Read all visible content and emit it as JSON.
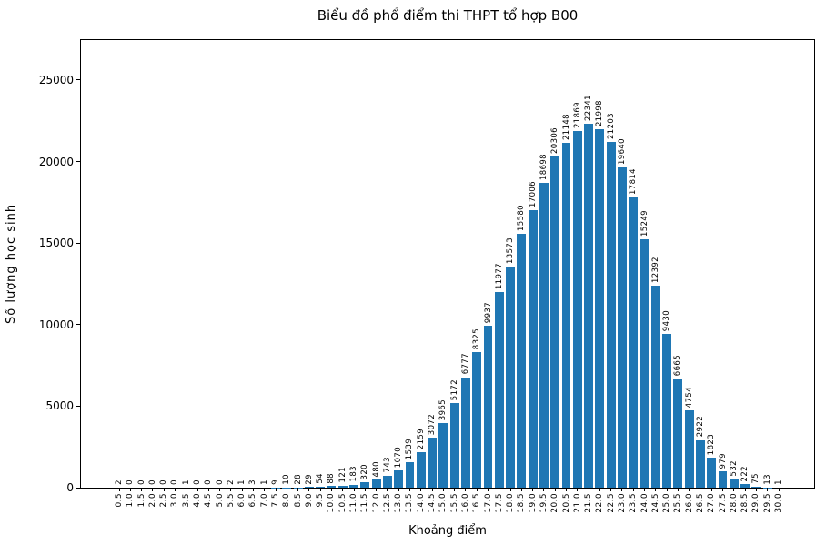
{
  "chart_data": {
    "type": "bar",
    "title": "Biểu đồ phổ điểm thi THPT tổ hợp B00",
    "xlabel": "Khoảng điểm",
    "ylabel": "Số lượng học sinh",
    "categories": [
      "0.5",
      "1.0",
      "1.5",
      "2.0",
      "2.5",
      "3.0",
      "3.5",
      "4.0",
      "4.5",
      "5.0",
      "5.5",
      "6.0",
      "6.5",
      "7.0",
      "7.5",
      "8.0",
      "8.5",
      "9.0",
      "9.5",
      "10.0",
      "10.5",
      "11.0",
      "11.5",
      "12.0",
      "12.5",
      "13.0",
      "13.5",
      "14.0",
      "14.5",
      "15.0",
      "15.5",
      "16.0",
      "16.5",
      "17.0",
      "17.5",
      "18.0",
      "18.5",
      "19.0",
      "19.5",
      "20.0",
      "20.5",
      "21.0",
      "21.5",
      "22.0",
      "22.5",
      "23.0",
      "23.5",
      "24.0",
      "24.5",
      "25.0",
      "25.5",
      "26.0",
      "26.5",
      "27.0",
      "27.5",
      "28.0",
      "28.5",
      "29.0",
      "29.5",
      "30.0"
    ],
    "values": [
      2,
      0,
      0,
      0,
      0,
      0,
      1,
      0,
      0,
      0,
      2,
      1,
      3,
      1,
      9,
      10,
      28,
      29,
      54,
      88,
      121,
      183,
      320,
      480,
      743,
      1070,
      1539,
      2159,
      3072,
      3965,
      5172,
      6777,
      8325,
      9937,
      11977,
      13573,
      15580,
      17006,
      18698,
      20306,
      21148,
      21869,
      22341,
      21998,
      21203,
      19640,
      17814,
      15249,
      12392,
      9430,
      6665,
      4754,
      2922,
      1823,
      979,
      532,
      222,
      75,
      13,
      1
    ],
    "yticks": [
      0,
      5000,
      10000,
      15000,
      20000,
      25000
    ],
    "ytick_labels": [
      "0",
      "5000",
      "10000",
      "15000",
      "20000",
      "25000"
    ],
    "ylim": [
      0,
      27450
    ],
    "bar_color": "#1f77b4",
    "text_color": "#000000",
    "grid": false,
    "x_tick_rotation": 90,
    "value_label_rotation": 90,
    "legend_position": "none"
  }
}
